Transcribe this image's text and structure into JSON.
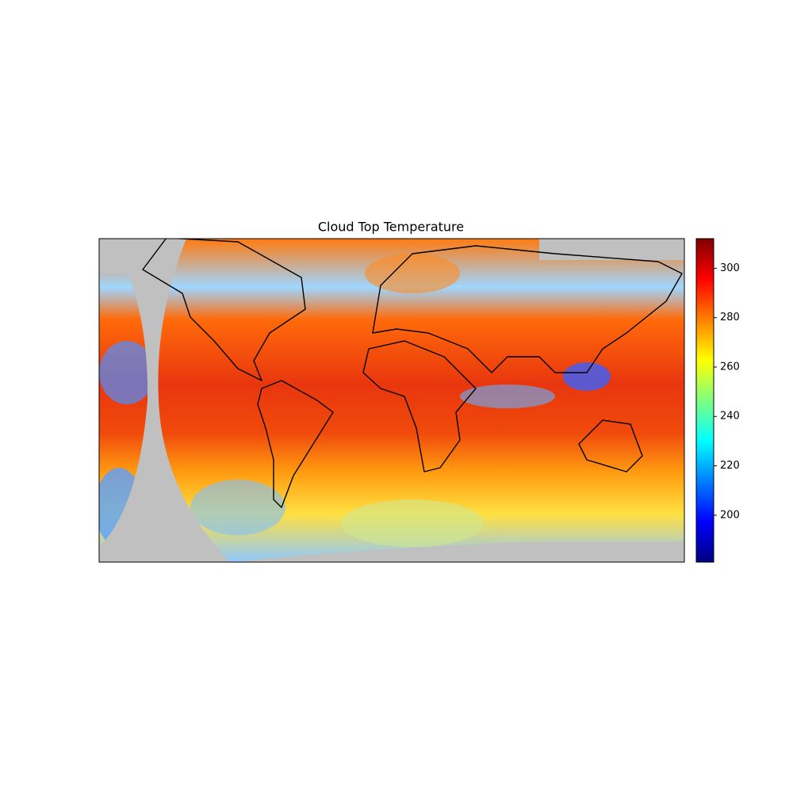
{
  "chart_data": {
    "type": "map",
    "title": "Cloud Top Temperature",
    "colorbar": {
      "colormap": "jet",
      "lim": [
        181,
        312
      ],
      "ticks": [
        200,
        220,
        240,
        260,
        280,
        300
      ]
    }
  }
}
